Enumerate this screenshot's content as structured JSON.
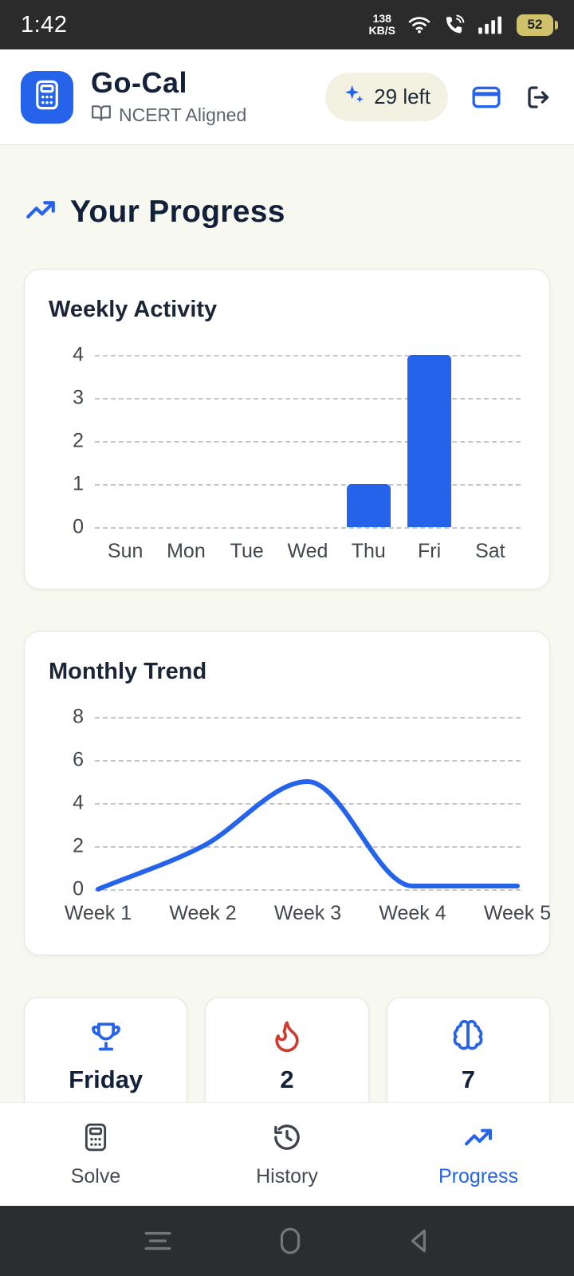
{
  "colors": {
    "primary": "#2563eb",
    "accent_red": "#cf3b2e",
    "text_dark": "#16233c",
    "text_muted": "#41484f",
    "background": "#f7f8ef",
    "statusbar_bg": "#2b2b2b",
    "gridline": "#c3c7cb"
  },
  "status_bar": {
    "time": "1:42",
    "network_speed_value": "138",
    "network_speed_unit": "KB/S",
    "battery_percent": "52"
  },
  "header": {
    "app_title": "Go-Cal",
    "app_subtitle": "NCERT Aligned",
    "credits_badge": "29 left"
  },
  "progress_section": {
    "title": "Your Progress"
  },
  "stats_cards": [
    {
      "icon": "trophy-icon",
      "value": "Friday"
    },
    {
      "icon": "flame-icon",
      "value": "2"
    },
    {
      "icon": "brain-icon",
      "value": "7"
    }
  ],
  "bottom_nav": {
    "items": [
      {
        "label": "Solve",
        "icon": "calculator-icon",
        "active": false
      },
      {
        "label": "History",
        "icon": "history-icon",
        "active": false
      },
      {
        "label": "Progress",
        "icon": "trend-up-icon",
        "active": true
      }
    ]
  },
  "chart_data": [
    {
      "type": "bar",
      "title": "Weekly Activity",
      "categories": [
        "Sun",
        "Mon",
        "Tue",
        "Wed",
        "Thu",
        "Fri",
        "Sat"
      ],
      "values": [
        0,
        0,
        0,
        0,
        1,
        4,
        0
      ],
      "ylim": [
        0,
        4
      ],
      "yticks": [
        0,
        1,
        2,
        3,
        4
      ],
      "grid": "dashed-horizontal",
      "bar_color": "#2563eb"
    },
    {
      "type": "line",
      "title": "Monthly Trend",
      "categories": [
        "Week 1",
        "Week 2",
        "Week 3",
        "Week 4",
        "Week 5"
      ],
      "values": [
        0,
        2,
        5,
        0.15,
        0.15
      ],
      "ylim": [
        0,
        8
      ],
      "yticks": [
        0,
        2,
        4,
        6,
        8
      ],
      "grid": "dashed-horizontal",
      "line_color": "#2563eb"
    }
  ]
}
